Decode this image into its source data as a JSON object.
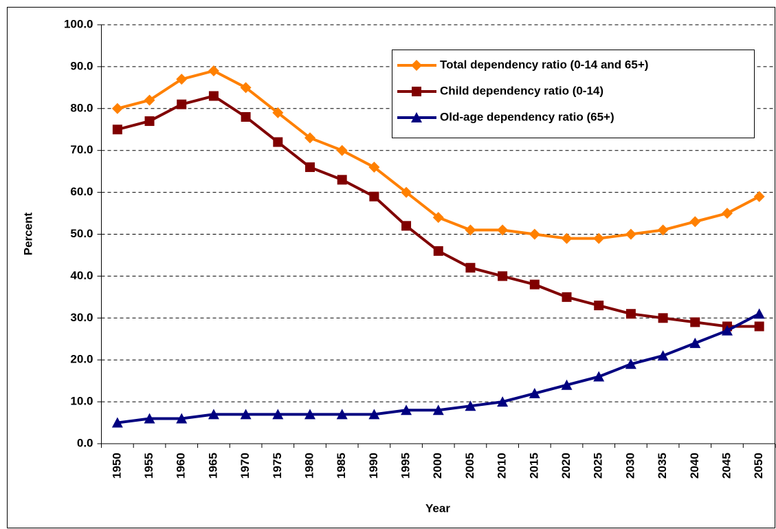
{
  "chart_data": {
    "type": "line",
    "x_label": "Year",
    "y_label": "Percent",
    "categories": [
      "1950",
      "1955",
      "1960",
      "1965",
      "1970",
      "1975",
      "1980",
      "1985",
      "1990",
      "1995",
      "2000",
      "2005",
      "2010",
      "2015",
      "2020",
      "2025",
      "2030",
      "2035",
      "2040",
      "2045",
      "2050"
    ],
    "series": [
      {
        "name": "Total dependency ratio (0-14 and 65+)",
        "color": "#ff8000",
        "marker": "diamond",
        "values": [
          80,
          82,
          87,
          89,
          85,
          79,
          73,
          70,
          66,
          60,
          54,
          51,
          51,
          50,
          49,
          49,
          50,
          51,
          53,
          55,
          59
        ]
      },
      {
        "name": "Child dependency ratio (0-14)",
        "color": "#800000",
        "marker": "square",
        "values": [
          75,
          77,
          81,
          83,
          78,
          72,
          66,
          63,
          59,
          52,
          46,
          42,
          40,
          38,
          35,
          33,
          31,
          30,
          29,
          28,
          28
        ]
      },
      {
        "name": "Old-age dependency ratio (65+)",
        "color": "#000080",
        "marker": "triangle",
        "values": [
          5,
          6,
          6,
          7,
          7,
          7,
          7,
          7,
          7,
          8,
          8,
          9,
          10,
          12,
          14,
          16,
          19,
          21,
          24,
          27,
          31
        ]
      }
    ],
    "ylim": [
      0,
      100
    ],
    "yticks": [
      {
        "value": 0,
        "label": "0.0"
      },
      {
        "value": 10,
        "label": "10.0"
      },
      {
        "value": 20,
        "label": "20.0"
      },
      {
        "value": 30,
        "label": "30.0"
      },
      {
        "value": 40,
        "label": "40.0"
      },
      {
        "value": 50,
        "label": "50.0"
      },
      {
        "value": 60,
        "label": "60.0"
      },
      {
        "value": 70,
        "label": "70.0"
      },
      {
        "value": 80,
        "label": "80.0"
      },
      {
        "value": 90,
        "label": "90.0"
      },
      {
        "value": 100,
        "label": "100.0"
      }
    ],
    "grid": true,
    "legend": "upper right"
  }
}
